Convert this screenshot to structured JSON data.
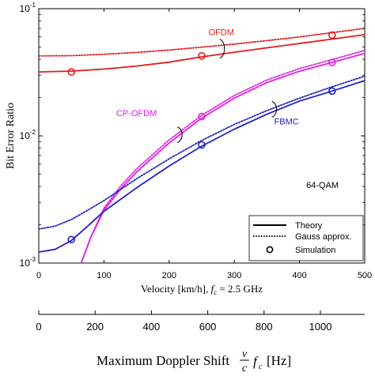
{
  "chart_data": {
    "type": "line",
    "xlabel": "Velocity [km/h], fc = 2.5 GHz",
    "ylabel": "Bit Error Ratio",
    "xlim": [
      0,
      500
    ],
    "ylim": [
      0.001,
      0.1
    ],
    "yscale": "log",
    "x_ticks": [
      "0",
      "100",
      "200",
      "300",
      "400",
      "500"
    ],
    "y_ticks": [
      "10^-3",
      "10^-2",
      "10^-1"
    ],
    "grid": false,
    "legend_position": "bottom-right",
    "legend": [
      {
        "label": "Theory",
        "style": "solid"
      },
      {
        "label": "Gauss approx.",
        "style": "dotted"
      },
      {
        "label": "Simulation",
        "style": "circle-marker"
      }
    ],
    "annotations": [
      {
        "text": "OFDM",
        "color": "#e41a1a",
        "x": 280,
        "y": 0.062
      },
      {
        "text": "CP-OFDM",
        "color": "#e020e0",
        "x": 150,
        "y": 0.0143
      },
      {
        "text": "FBMC",
        "color": "#2020c8",
        "x": 380,
        "y": 0.0123
      },
      {
        "text": "64-QAM",
        "color": "#000000",
        "x": 460,
        "y": 0.0039
      }
    ],
    "series": [
      {
        "group": "OFDM",
        "kind": "Theory",
        "color": "#e41a1a",
        "x": [
          0,
          50,
          100,
          150,
          200,
          250,
          300,
          350,
          400,
          450,
          500
        ],
        "y": [
          0.0318,
          0.0323,
          0.0335,
          0.0354,
          0.038,
          0.0418,
          0.0455,
          0.0493,
          0.0533,
          0.0577,
          0.0625
        ]
      },
      {
        "group": "OFDM",
        "kind": "Gauss approx.",
        "color": "#e41a1a",
        "x": [
          0,
          50,
          100,
          150,
          200,
          250,
          300,
          350,
          400,
          450,
          500
        ],
        "y": [
          0.0425,
          0.0427,
          0.0438,
          0.0453,
          0.0473,
          0.0498,
          0.0527,
          0.0561,
          0.06,
          0.0648,
          0.07
        ]
      },
      {
        "group": "OFDM",
        "kind": "Simulation",
        "color": "#e41a1a",
        "x": [
          50,
          250,
          450
        ],
        "y": [
          0.0318,
          0.0425,
          0.062
        ]
      },
      {
        "group": "CP-OFDM",
        "kind": "Theory",
        "color": "#e020e0",
        "x": [
          65,
          80,
          100,
          125,
          150,
          200,
          250,
          300,
          350,
          400,
          450,
          500
        ],
        "y": [
          0.001,
          0.0016,
          0.0026,
          0.0038,
          0.0052,
          0.0088,
          0.0138,
          0.0198,
          0.0263,
          0.0322,
          0.0378,
          0.0445
        ]
      },
      {
        "group": "CP-OFDM",
        "kind": "Gauss approx.",
        "color": "#e020e0",
        "x": [
          65,
          80,
          100,
          125,
          150,
          200,
          250,
          300,
          350,
          400,
          450,
          500
        ],
        "y": [
          0.001,
          0.0016,
          0.0027,
          0.004,
          0.0055,
          0.0093,
          0.0145,
          0.0208,
          0.0275,
          0.0338,
          0.0398,
          0.047
        ]
      },
      {
        "group": "CP-OFDM",
        "kind": "Simulation",
        "color": "#e020e0",
        "x": [
          250,
          450
        ],
        "y": [
          0.0142,
          0.0378
        ]
      },
      {
        "group": "FBMC",
        "kind": "Theory",
        "color": "#2020c8",
        "x": [
          0,
          25,
          50,
          75,
          100,
          150,
          200,
          250,
          300,
          350,
          400,
          450,
          500
        ],
        "y": [
          0.00122,
          0.00128,
          0.0015,
          0.00195,
          0.00255,
          0.0039,
          0.0058,
          0.0083,
          0.0113,
          0.0148,
          0.0188,
          0.0225,
          0.0272
        ]
      },
      {
        "group": "FBMC",
        "kind": "Gauss approx.",
        "color": "#2020c8",
        "x": [
          0,
          25,
          50,
          75,
          100,
          150,
          200,
          250,
          300,
          350,
          400,
          450,
          500
        ],
        "y": [
          0.00185,
          0.00195,
          0.0022,
          0.0026,
          0.0031,
          0.0046,
          0.0066,
          0.0092,
          0.0123,
          0.0158,
          0.0198,
          0.0243,
          0.0295
        ]
      },
      {
        "group": "FBMC",
        "kind": "Simulation",
        "color": "#2020c8",
        "x": [
          50,
          250,
          450
        ],
        "y": [
          0.00153,
          0.0085,
          0.0225
        ]
      }
    ],
    "secondary_axis": {
      "label": "Maximum Doppler Shift (v/c) fc [Hz]",
      "ticks": [
        0,
        200,
        400,
        600,
        800,
        1000
      ],
      "range": [
        0,
        1157.4
      ]
    }
  }
}
